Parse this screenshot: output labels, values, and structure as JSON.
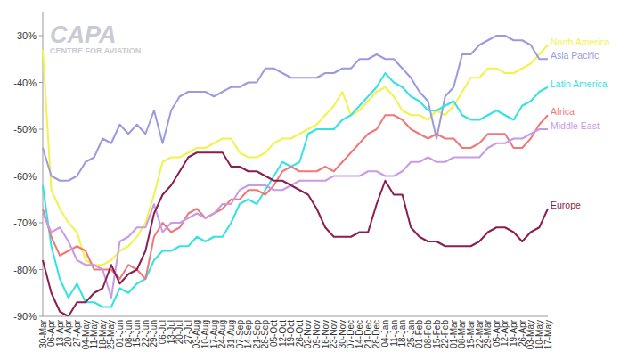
{
  "chart_data": {
    "type": "line",
    "annotations": [
      "CAPA",
      "CENTRE FOR AVIATION"
    ],
    "categories": [
      "30-Mar",
      "06-Apr",
      "13-Apr",
      "20-Apr",
      "27-Apr",
      "04-May",
      "11-May",
      "18-May",
      "25-May",
      "01-Jun",
      "08-Jun",
      "15-Jun",
      "22-Jun",
      "29-Jun",
      "06-Jul",
      "13-Jul",
      "20-Jul",
      "27-Jul",
      "03-Aug",
      "10-Aug",
      "17-Aug",
      "24-Aug",
      "31-Aug",
      "07-Sep",
      "14-Sep",
      "21-Sep",
      "28-Sep",
      "05-Oct",
      "12-Oct",
      "19-Oct",
      "26-Oct",
      "02-Nov",
      "09-Nov",
      "16-Nov",
      "23-Nov",
      "30-Nov",
      "07-Dec",
      "14-Dec",
      "21-Dec",
      "28-Dec",
      "04-Jan",
      "11-Jan",
      "18-Jan",
      "25-Jan",
      "01-Feb",
      "08-Feb",
      "15-Feb",
      "22-Feb",
      "01-Mar",
      "08-Mar",
      "15-Mar",
      "22-Mar",
      "29-Mar",
      "05-Apr",
      "12-Apr",
      "19-Apr",
      "26-Apr",
      "03-May",
      "10-May",
      "17-May"
    ],
    "series": [
      {
        "name": "North America",
        "color": "#f2f24a",
        "values": [
          -33,
          -63,
          -67,
          -70,
          -72,
          -78,
          -79,
          -79,
          -78,
          -76,
          -75,
          -73,
          -70,
          -64,
          -57,
          -56,
          -56,
          -55,
          -54,
          -54,
          -53,
          -52,
          -52,
          -55,
          -56,
          -56,
          -55,
          -53,
          -52,
          -52,
          -51,
          -50,
          -49,
          -47,
          -45,
          -42,
          -47,
          -46,
          -44,
          -42,
          -41,
          -43,
          -46,
          -47,
          -47,
          -48,
          -46,
          -47,
          -45,
          -42,
          -39,
          -39,
          -37,
          -37,
          -38,
          -38,
          -37,
          -36,
          -34,
          -32
        ]
      },
      {
        "name": "Asia Pacific",
        "color": "#9a9ae0",
        "values": [
          -54,
          -60,
          -61,
          -61,
          -60,
          -57,
          -56,
          -52,
          -53,
          -49,
          -51,
          -49,
          -51,
          -46,
          -53,
          -46,
          -43,
          -42,
          -42,
          -42,
          -43,
          -42,
          -41,
          -41,
          -40,
          -40,
          -37,
          -37,
          -38,
          -39,
          -39,
          -39,
          -39,
          -38,
          -38,
          -37,
          -37,
          -35,
          -35,
          -34,
          -35,
          -35,
          -37,
          -39,
          -42,
          -44,
          -52,
          -43,
          -41,
          -34,
          -34,
          -32,
          -31,
          -30,
          -30,
          -31,
          -31,
          -32,
          -35,
          -35
        ]
      },
      {
        "name": "Latin America",
        "color": "#33e3e3",
        "values": [
          -62,
          -75,
          -82,
          -86,
          -83,
          -87,
          -87,
          -88,
          -88,
          -84,
          -85,
          -83,
          -82,
          -78,
          -76,
          -76,
          -75,
          -75,
          -73,
          -74,
          -73,
          -73,
          -70,
          -66,
          -65,
          -66,
          -63,
          -60,
          -57,
          -58,
          -57,
          -51,
          -50,
          -50,
          -50,
          -48,
          -47,
          -45,
          -43,
          -41,
          -38,
          -40,
          -41,
          -43,
          -44,
          -46,
          -46,
          -45,
          -44,
          -47,
          -48,
          -48,
          -47,
          -46,
          -47,
          -48,
          -45,
          -44,
          -42,
          -41
        ]
      },
      {
        "name": "Africa",
        "color": "#f07878",
        "values": [
          -67,
          -73,
          -77,
          -76,
          -75,
          -76,
          -80,
          -80,
          -80,
          -82,
          -79,
          -80,
          -82,
          -73,
          -70,
          -72,
          -71,
          -68,
          -67,
          -69,
          -68,
          -67,
          -65,
          -65,
          -63,
          -63,
          -64,
          -62,
          -59,
          -58,
          -59,
          -59,
          -59,
          -58,
          -59,
          -57,
          -55,
          -53,
          -51,
          -50,
          -47,
          -47,
          -48,
          -50,
          -51,
          -52,
          -51,
          -52,
          -52,
          -54,
          -54,
          -53,
          -51,
          -51,
          -51,
          -54,
          -54,
          -52,
          -49,
          -47
        ]
      },
      {
        "name": "Middle East",
        "color": "#c99ae6",
        "values": [
          -68,
          -72,
          -71,
          -74,
          -78,
          -79,
          -79,
          -80,
          -86,
          -74,
          -73,
          -71,
          -71,
          -66,
          -72,
          -70,
          -70,
          -69,
          -68,
          -69,
          -68,
          -66,
          -66,
          -63,
          -62,
          -62,
          -62,
          -63,
          -63,
          -62,
          -61,
          -61,
          -61,
          -61,
          -60,
          -60,
          -60,
          -60,
          -59,
          -59,
          -60,
          -60,
          -59,
          -57,
          -57,
          -56,
          -57,
          -57,
          -56,
          -56,
          -56,
          -56,
          -54,
          -53,
          -53,
          -52,
          -52,
          -51,
          -50,
          -50
        ]
      },
      {
        "name": "Europe",
        "color": "#8b1e4e",
        "values": [
          -78,
          -85,
          -89,
          -90,
          -87,
          -87,
          -85,
          -84,
          -79,
          -83,
          -81,
          -80,
          -76,
          -68,
          -64,
          -62,
          -59,
          -56,
          -55,
          -55,
          -55,
          -55,
          -58,
          -58,
          -59,
          -59,
          -60,
          -61,
          -61,
          -62,
          -63,
          -64,
          -67,
          -71,
          -73,
          -73,
          -73,
          -72,
          -72,
          -66,
          -61,
          -64,
          -64,
          -71,
          -73,
          -74,
          -74,
          -75,
          -75,
          -75,
          -75,
          -74,
          -72,
          -71,
          -71,
          -72,
          -74,
          -72,
          -71,
          -67
        ]
      }
    ],
    "ylim": [
      -90,
      -25
    ],
    "yticks": [
      {
        "value": -90,
        "label": "-90%"
      },
      {
        "value": -80,
        "label": "-80%"
      },
      {
        "value": -70,
        "label": "-70%"
      },
      {
        "value": -60,
        "label": "-60%"
      },
      {
        "value": -50,
        "label": "-50%"
      },
      {
        "value": -40,
        "label": "-40%"
      },
      {
        "value": -30,
        "label": "-30%"
      }
    ],
    "grid": false
  }
}
